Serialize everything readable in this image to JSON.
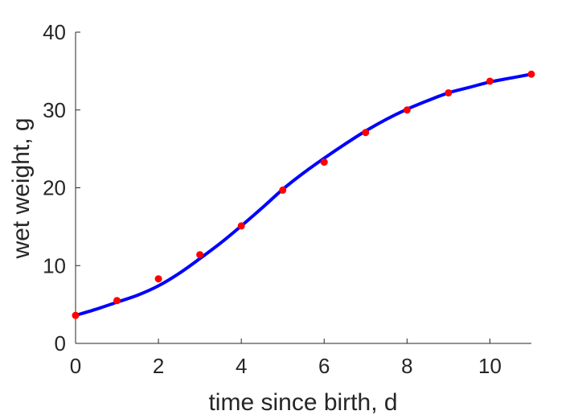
{
  "chart_data": {
    "type": "scatter",
    "title": "",
    "xlabel": "time since birth, d",
    "ylabel": "wet weight, g",
    "xlim": [
      0,
      11
    ],
    "ylim": [
      0,
      40
    ],
    "xticks": [
      "0",
      "2",
      "4",
      "6",
      "8",
      "10"
    ],
    "yticks": [
      "0",
      "10",
      "20",
      "30",
      "40"
    ],
    "grid": false,
    "legend": "none",
    "series": [
      {
        "kind": "points",
        "color": "#ff0000",
        "x": [
          0,
          1,
          2,
          3,
          4,
          5,
          6,
          7,
          8,
          9,
          10,
          11
        ],
        "y": [
          3.6,
          5.5,
          8.3,
          11.4,
          15.1,
          19.7,
          23.3,
          27.1,
          30.0,
          32.2,
          33.7,
          34.6
        ]
      },
      {
        "kind": "line",
        "color": "#0000ff",
        "x": [
          0,
          0.5,
          1,
          1.5,
          2,
          2.5,
          3,
          3.5,
          4,
          4.5,
          5,
          5.5,
          6,
          6.5,
          7,
          7.5,
          8,
          8.5,
          9,
          9.5,
          10,
          10.5,
          11
        ],
        "y": [
          3.6,
          4.4,
          5.3,
          6.2,
          7.4,
          9.0,
          10.9,
          12.9,
          15.1,
          17.4,
          19.8,
          21.9,
          23.8,
          25.6,
          27.3,
          28.8,
          30.1,
          31.2,
          32.2,
          32.9,
          33.6,
          34.1,
          34.6
        ]
      }
    ]
  }
}
